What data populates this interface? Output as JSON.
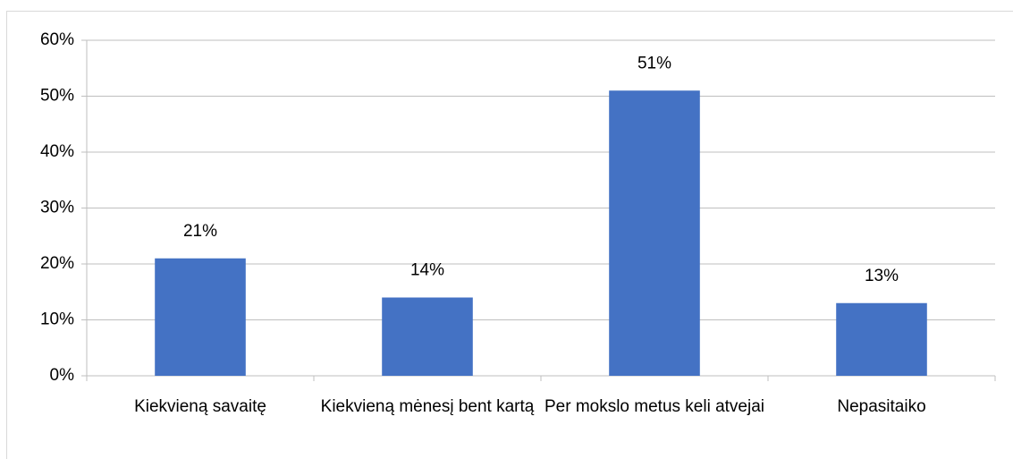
{
  "chart_data": {
    "type": "bar",
    "categories": [
      "Kiekvieną savaitę",
      "Kiekvieną mėnesį bent kartą",
      "Per mokslo metus keli atvejai",
      "Nepasitaiko"
    ],
    "values": [
      21,
      14,
      51,
      13
    ],
    "value_labels": [
      "21%",
      "14%",
      "51%",
      "13%"
    ],
    "color": "#4472c4",
    "ylim": [
      0,
      60
    ],
    "yticks": [
      {
        "value": 0,
        "label": "0%"
      },
      {
        "value": 10,
        "label": "10%"
      },
      {
        "value": 20,
        "label": "20%"
      },
      {
        "value": 30,
        "label": "30%"
      },
      {
        "value": 40,
        "label": "40%"
      },
      {
        "value": 50,
        "label": "50%"
      },
      {
        "value": 60,
        "label": "60%"
      }
    ],
    "grid": true
  }
}
